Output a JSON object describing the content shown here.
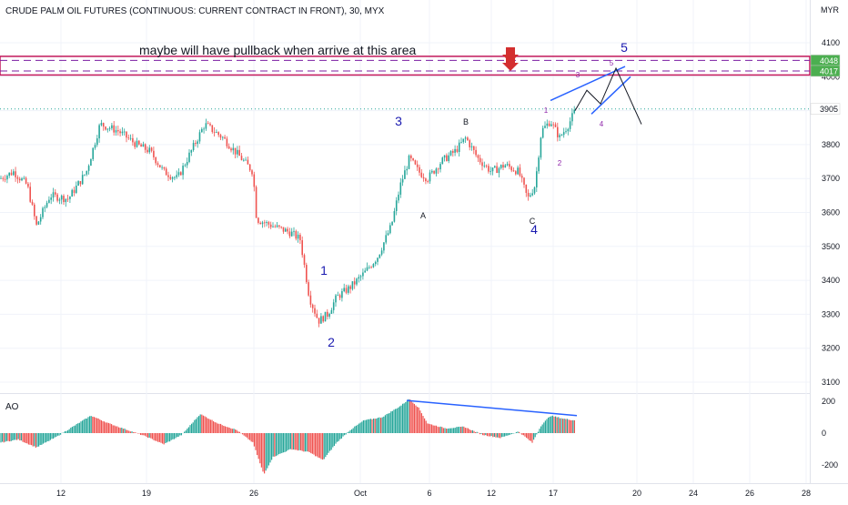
{
  "chart_data": [
    {
      "type": "candlestick",
      "title": "CRUDE PALM OIL FUTURES (CONTINUOUS: CURRENT CONTRACT IN FRONT), 30, MYX",
      "currency": "MYR",
      "x_ticks": [
        "12",
        "19",
        "26",
        "Oct",
        "6",
        "12",
        "17",
        "20",
        "24",
        "26",
        "28"
      ],
      "y_ticks": [
        4100,
        4000,
        3900,
        3800,
        3700,
        3600,
        3500,
        3400,
        3300,
        3200,
        3100
      ],
      "ylim": [
        3070,
        4130
      ],
      "price_badges": [
        {
          "label": "4048",
          "value": 4048,
          "color": "#4caf50"
        },
        {
          "label": "4017",
          "value": 4017,
          "color": "#4caf50"
        },
        {
          "label": "3905",
          "value": 3905,
          "color": "#ffffff"
        }
      ],
      "resistance_lines": [
        4048,
        4017
      ],
      "last_price_line": 3905,
      "annotation_text": "maybe will have pullback when arrive at this area",
      "wave_labels": [
        {
          "text": "1",
          "color": "#1a1ab0",
          "pos": "after first low"
        },
        {
          "text": "2",
          "color": "#1a1ab0",
          "pos": "main low"
        },
        {
          "text": "3",
          "color": "#1a1ab0",
          "pos": "above rally top"
        },
        {
          "text": "A",
          "color": "#131722",
          "pos": "corrective low"
        },
        {
          "text": "B",
          "color": "#131722",
          "pos": "corrective high"
        },
        {
          "text": "C",
          "color": "#131722",
          "pos": "corrective end"
        },
        {
          "text": "4",
          "color": "#1a1ab0",
          "pos": "wave 4 low"
        },
        {
          "text": "5",
          "color": "#1a1ab0",
          "pos": "target top"
        },
        {
          "text": "1",
          "color": "#8e24aa",
          "pos": "sub wave"
        },
        {
          "text": "2",
          "color": "#8e24aa",
          "pos": "sub wave"
        },
        {
          "text": "3",
          "color": "#8e24aa",
          "pos": "sub wave"
        },
        {
          "text": "4",
          "color": "#8e24aa",
          "pos": "sub wave"
        },
        {
          "text": "5",
          "color": "#8e24aa",
          "pos": "sub wave"
        }
      ],
      "colors": {
        "up": "#26a69a",
        "down": "#ef5350",
        "wave": "#1a1ab0",
        "subwave": "#8e24aa",
        "trend": "#2962ff",
        "resistance": "#c2185b"
      }
    },
    {
      "type": "bar",
      "title": "AO",
      "y_ticks": [
        200,
        0,
        -200
      ],
      "ylim": [
        -230,
        230
      ],
      "colors": {
        "up": "#26a69a",
        "down": "#ef5350"
      }
    }
  ]
}
